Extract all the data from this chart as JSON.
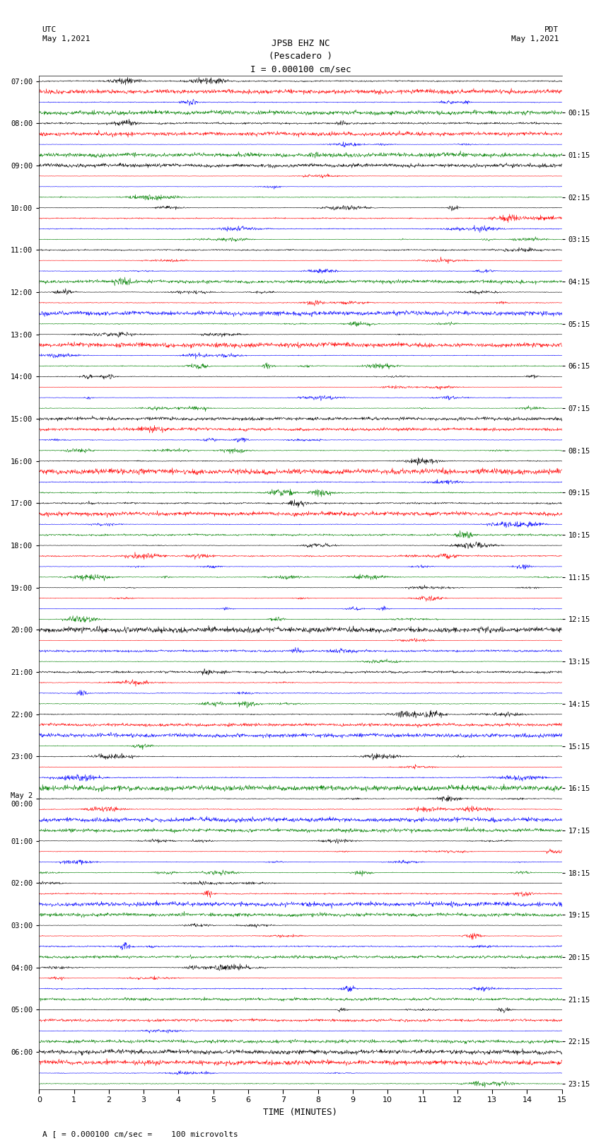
{
  "title_line1": "JPSB EHZ NC",
  "title_line2": "(Pescadero )",
  "title_line3": "I = 0.000100 cm/sec",
  "left_label_top": "UTC",
  "left_label_date": "May 1,2021",
  "right_label_top": "PDT",
  "right_label_date": "May 1,2021",
  "xlabel": "TIME (MINUTES)",
  "bottom_note": "A [ = 0.000100 cm/sec =    100 microvolts",
  "colors": [
    "black",
    "red",
    "blue",
    "green"
  ],
  "x_min": 0,
  "x_max": 15,
  "x_ticks": [
    0,
    1,
    2,
    3,
    4,
    5,
    6,
    7,
    8,
    9,
    10,
    11,
    12,
    13,
    14,
    15
  ],
  "left_times": [
    "07:00",
    "08:00",
    "09:00",
    "10:00",
    "11:00",
    "12:00",
    "13:00",
    "14:00",
    "15:00",
    "16:00",
    "17:00",
    "18:00",
    "19:00",
    "20:00",
    "21:00",
    "22:00",
    "23:00",
    "May 2\n00:00",
    "01:00",
    "02:00",
    "03:00",
    "04:00",
    "05:00",
    "06:00"
  ],
  "right_times": [
    "00:15",
    "01:15",
    "02:15",
    "03:15",
    "04:15",
    "05:15",
    "06:15",
    "07:15",
    "08:15",
    "09:15",
    "10:15",
    "11:15",
    "12:15",
    "13:15",
    "14:15",
    "15:15",
    "16:15",
    "17:15",
    "18:15",
    "19:15",
    "20:15",
    "21:15",
    "22:15",
    "23:15"
  ],
  "n_hours": 24,
  "traces_per_hour": 4,
  "amplitude_scale": 0.42,
  "fig_width": 8.5,
  "fig_height": 16.13,
  "bg_color": "white",
  "trace_linewidth": 0.4
}
